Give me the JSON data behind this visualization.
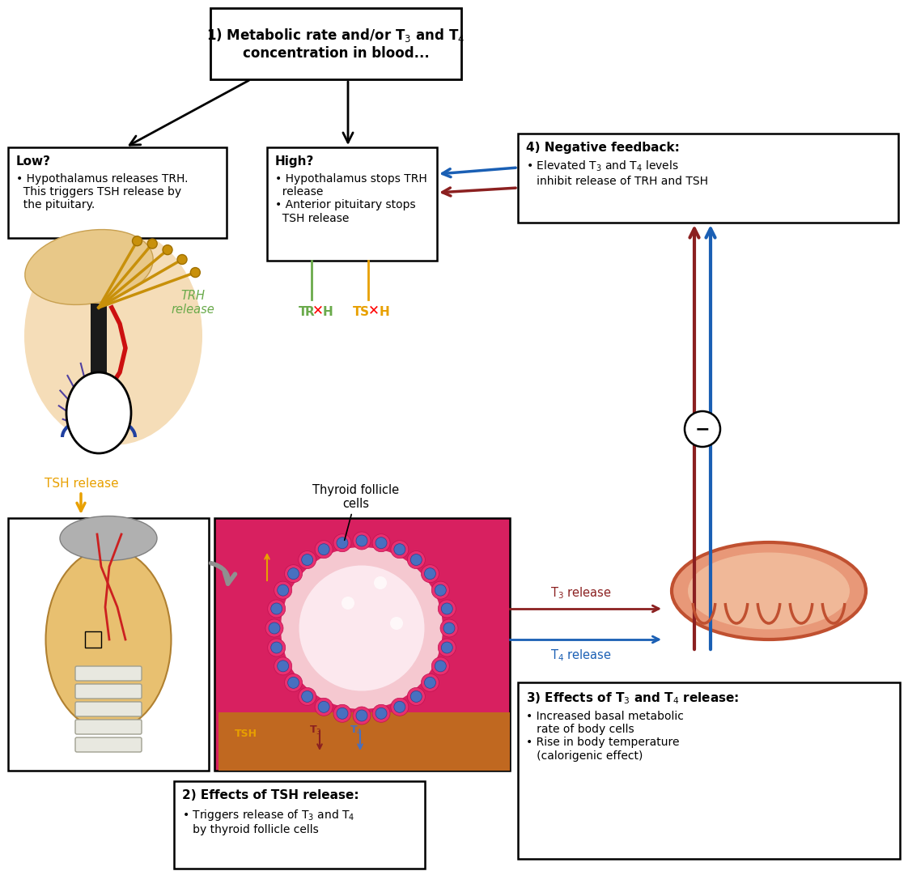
{
  "bg_color": "#ffffff",
  "trh_color": "#6aaa4b",
  "tsh_color": "#e8a000",
  "t3_color": "#8b2020",
  "t4_color": "#1a5fb4",
  "box1_text": "1) Metabolic rate and/or T$_3$ and T$_4$\nconcentration in blood...",
  "box_low_bold": "Low?",
  "box_low_body": "• Hypothalamus releases TRH.\n  This triggers TSH release by\n  the pituitary.",
  "box_high_bold": "High?",
  "box_high_body": "• Hypothalamus stops TRH\n  release\n• Anterior pituitary stops\n  TSH release",
  "box4_bold": "4) Negative feedback:",
  "box4_body": "• Elevated T$_3$ and T$_4$ levels\n   inhibit release of TRH and TSH",
  "box2_bold": "2) Effects of TSH release:",
  "box2_body": "• Triggers release of T$_3$ and T$_4$\n   by thyroid follicle cells",
  "box3_bold": "3) Effects of T$_3$ and T$_4$ release:",
  "box3_body": "• Increased basal metabolic\n   rate of body cells\n• Rise in body temperature\n   (calorigenic effect)",
  "label_trh": "TRH\nrelease",
  "label_tsh": "TSH release",
  "label_thyroid_follicle": "Thyroid follicle\ncells",
  "label_t3": "T$_3$ release",
  "label_t4": "T$_4$ release"
}
